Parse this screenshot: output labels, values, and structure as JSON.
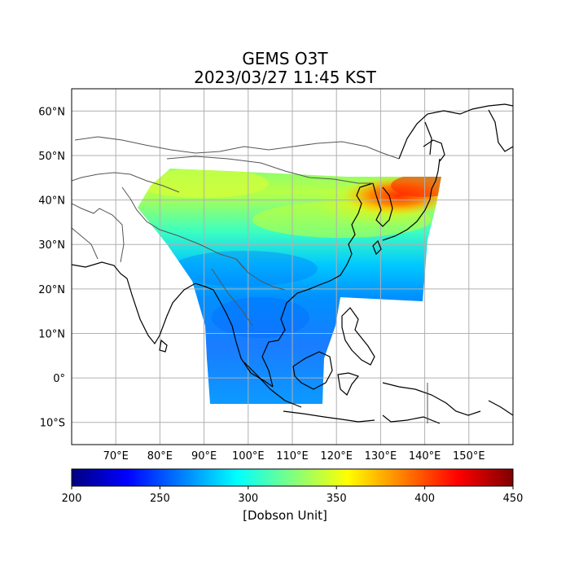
{
  "title": {
    "line1": "GEMS O3T",
    "line2": "2023/03/27 11:45 KST"
  },
  "map": {
    "lon_range": [
      60,
      160
    ],
    "lat_range": [
      -15,
      65
    ],
    "lon_ticks": [
      {
        "value": 70,
        "label": "70°E"
      },
      {
        "value": 80,
        "label": "80°E"
      },
      {
        "value": 90,
        "label": "90°E"
      },
      {
        "value": 100,
        "label": "100°E"
      },
      {
        "value": 110,
        "label": "110°E"
      },
      {
        "value": 120,
        "label": "120°E"
      },
      {
        "value": 130,
        "label": "130°E"
      },
      {
        "value": 140,
        "label": "140°E"
      },
      {
        "value": 150,
        "label": "150°E"
      }
    ],
    "lat_ticks": [
      {
        "value": 60,
        "label": "60°N"
      },
      {
        "value": 50,
        "label": "50°N"
      },
      {
        "value": 40,
        "label": "40°N"
      },
      {
        "value": 30,
        "label": "30°N"
      },
      {
        "value": 20,
        "label": "20°N"
      },
      {
        "value": 10,
        "label": "10°N"
      },
      {
        "value": 0,
        "label": "0°"
      },
      {
        "value": -10,
        "label": "10°S"
      }
    ],
    "grid": true,
    "coastline_color": "#000000",
    "border_color": "#555555"
  },
  "colorbar": {
    "min": 200,
    "max": 450,
    "colormap": "jet",
    "ticks": [
      {
        "value": 200,
        "label": "200"
      },
      {
        "value": 250,
        "label": "250"
      },
      {
        "value": 300,
        "label": "300"
      },
      {
        "value": 350,
        "label": "350"
      },
      {
        "value": 400,
        "label": "400"
      },
      {
        "value": 450,
        "label": "450"
      }
    ],
    "label": "[Dobson Unit]"
  }
}
